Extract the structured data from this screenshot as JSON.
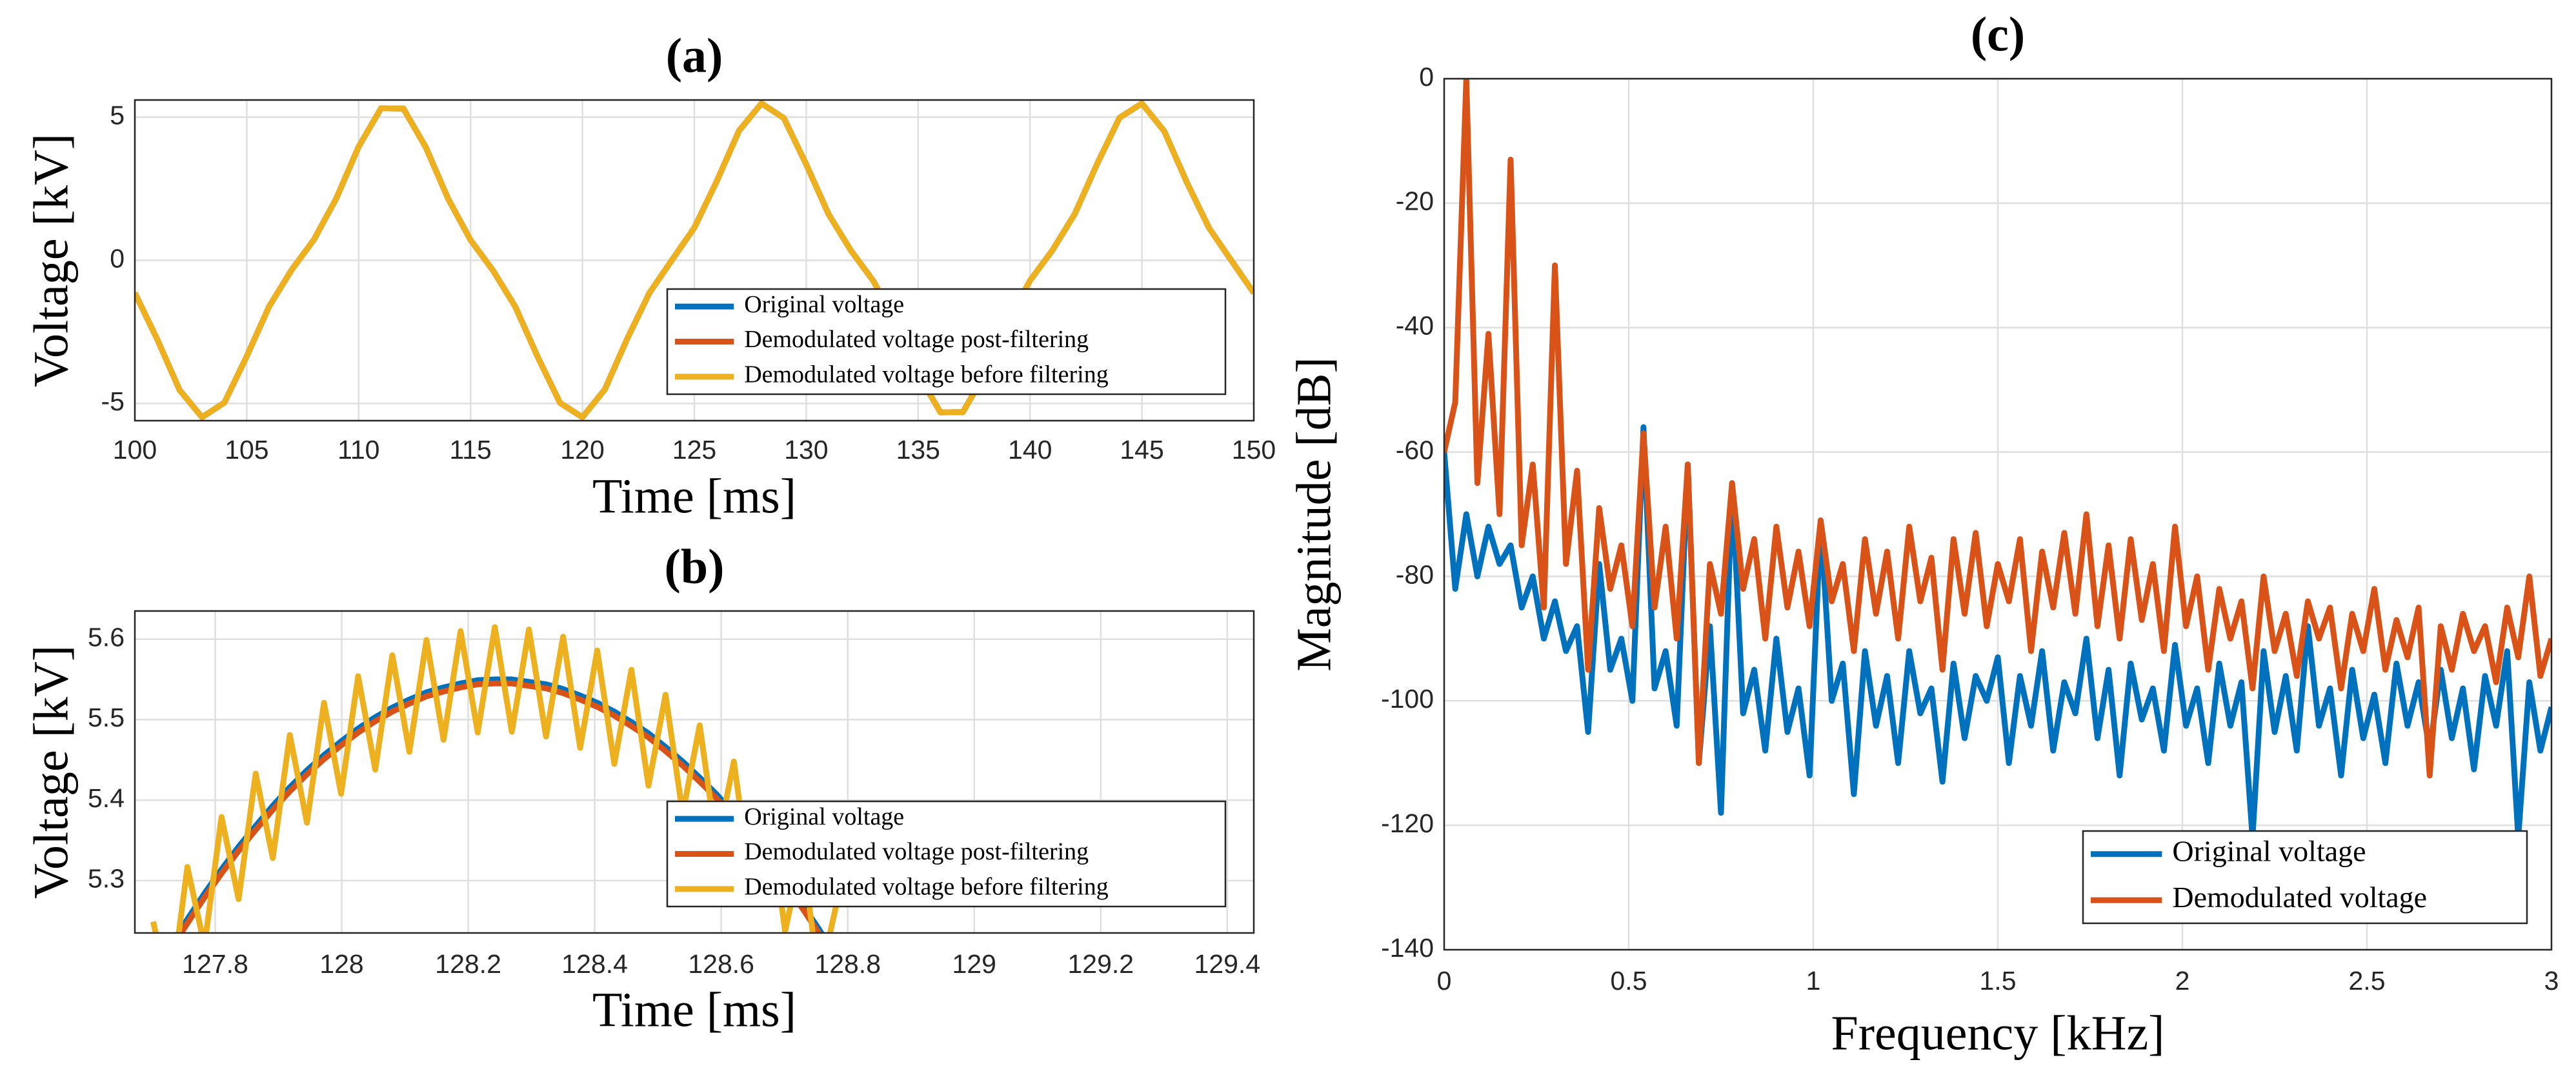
{
  "chart_data": [
    {
      "type": "line",
      "title": "(a)",
      "xlabel": "Time [ms]",
      "ylabel": "Voltage [kV]",
      "x": [
        100,
        101,
        102,
        103,
        104,
        105,
        106,
        107,
        108,
        109,
        110,
        111,
        112,
        113,
        114,
        115,
        116,
        117,
        118,
        119,
        120,
        121,
        122,
        123,
        124,
        125,
        126,
        127,
        128,
        129,
        130,
        131,
        132,
        133,
        134,
        135,
        136,
        137,
        138,
        139,
        140,
        141,
        142,
        143,
        144,
        145,
        146,
        147,
        148,
        149,
        150
      ],
      "series": [
        {
          "name": "Original voltage",
          "color": "#0072BD",
          "values": [
            -1.14,
            -2.76,
            -4.53,
            -5.48,
            -4.97,
            -3.35,
            -1.61,
            -0.34,
            0.72,
            2.16,
            3.97,
            5.31,
            5.3,
            3.95,
            2.15,
            0.71,
            -0.35,
            -1.62,
            -3.37,
            -4.98,
            -5.48,
            -4.51,
            -2.74,
            -1.13,
            0.01,
            1.14,
            2.76,
            4.53,
            5.48,
            4.97,
            3.35,
            1.61,
            0.34,
            -0.72,
            -2.16,
            -3.97,
            -5.31,
            -5.3,
            -3.95,
            -2.15,
            -0.71,
            0.35,
            1.62,
            3.37,
            4.98,
            5.48,
            4.51,
            2.74,
            1.13,
            -0.01,
            -1.14
          ]
        },
        {
          "name": "Demodulated voltage post-filtering",
          "color": "#D95319",
          "values": [
            -1.14,
            -2.76,
            -4.53,
            -5.48,
            -4.97,
            -3.35,
            -1.61,
            -0.34,
            0.72,
            2.16,
            3.97,
            5.31,
            5.3,
            3.95,
            2.15,
            0.71,
            -0.35,
            -1.62,
            -3.37,
            -4.98,
            -5.48,
            -4.51,
            -2.74,
            -1.13,
            0.01,
            1.14,
            2.76,
            4.53,
            5.48,
            4.97,
            3.35,
            1.61,
            0.34,
            -0.72,
            -2.16,
            -3.97,
            -5.31,
            -5.3,
            -3.95,
            -2.15,
            -0.71,
            0.35,
            1.62,
            3.37,
            4.98,
            5.48,
            4.51,
            2.74,
            1.13,
            -0.01,
            -1.14
          ]
        },
        {
          "name": "Demodulated voltage before filtering",
          "color": "#EDB120",
          "values": [
            -1.14,
            -2.76,
            -4.53,
            -5.48,
            -4.97,
            -3.35,
            -1.61,
            -0.34,
            0.72,
            2.16,
            3.97,
            5.31,
            5.3,
            3.95,
            2.15,
            0.71,
            -0.35,
            -1.62,
            -3.37,
            -4.98,
            -5.48,
            -4.51,
            -2.74,
            -1.13,
            0.01,
            1.14,
            2.76,
            4.53,
            5.48,
            4.97,
            3.35,
            1.61,
            0.34,
            -0.72,
            -2.16,
            -3.97,
            -5.31,
            -5.3,
            -3.95,
            -2.15,
            -0.71,
            0.35,
            1.62,
            3.37,
            4.98,
            5.48,
            4.51,
            2.74,
            1.13,
            -0.01,
            -1.14
          ]
        }
      ],
      "xlim": [
        100,
        150
      ],
      "xticks": [
        100,
        105,
        110,
        115,
        120,
        125,
        130,
        135,
        140,
        145,
        150
      ],
      "ylim": [
        -5.6,
        5.6
      ],
      "yticks": [
        -5,
        0,
        5
      ],
      "grid": true,
      "legend": "lower right"
    },
    {
      "type": "line",
      "title": "(b)",
      "xlabel": "Time [ms]",
      "ylabel": "Voltage [kV]",
      "x": [
        127.702,
        127.729,
        127.756,
        127.783,
        127.81,
        127.837,
        127.864,
        127.891,
        127.918,
        127.945,
        127.972,
        127.999,
        128.026,
        128.053,
        128.08,
        128.107,
        128.134,
        128.161,
        128.188,
        128.215,
        128.242,
        128.269,
        128.296,
        128.323,
        128.35,
        128.377,
        128.404,
        128.431,
        128.458,
        128.485,
        128.512,
        128.539,
        128.566,
        128.593,
        128.62,
        128.647,
        128.674,
        128.701,
        128.728,
        128.755,
        128.782
      ],
      "series": [
        {
          "name": "Original voltage",
          "color": "#0072BD",
          "values": [
            5.184,
            5.219,
            5.252,
            5.284,
            5.314,
            5.342,
            5.368,
            5.393,
            5.416,
            5.437,
            5.456,
            5.473,
            5.489,
            5.503,
            5.515,
            5.525,
            5.534,
            5.54,
            5.545,
            5.549,
            5.55,
            5.55,
            5.547,
            5.544,
            5.538,
            5.53,
            5.521,
            5.51,
            5.497,
            5.483,
            5.466,
            5.448,
            5.428,
            5.407,
            5.383,
            5.358,
            5.331,
            5.302,
            5.271,
            5.239,
            5.205
          ]
        },
        {
          "name": "Demodulated voltage post-filtering",
          "color": "#D95319",
          "values": [
            5.179,
            5.214,
            5.247,
            5.279,
            5.309,
            5.337,
            5.363,
            5.388,
            5.411,
            5.432,
            5.451,
            5.468,
            5.484,
            5.498,
            5.51,
            5.52,
            5.529,
            5.535,
            5.54,
            5.544,
            5.545,
            5.545,
            5.542,
            5.539,
            5.533,
            5.525,
            5.516,
            5.505,
            5.492,
            5.478,
            5.461,
            5.443,
            5.423,
            5.402,
            5.378,
            5.353,
            5.326,
            5.297,
            5.266,
            5.234,
            5.2
          ]
        },
        {
          "name": "Demodulated voltage before filtering",
          "color": "#EDB120",
          "values": [
            5.249,
            5.154,
            5.317,
            5.219,
            5.379,
            5.277,
            5.433,
            5.328,
            5.481,
            5.372,
            5.521,
            5.408,
            5.554,
            5.438,
            5.58,
            5.46,
            5.599,
            5.475,
            5.61,
            5.484,
            5.615,
            5.485,
            5.612,
            5.479,
            5.603,
            5.465,
            5.586,
            5.445,
            5.562,
            5.418,
            5.531,
            5.383,
            5.493,
            5.342,
            5.448,
            5.293,
            5.396,
            5.237,
            5.336,
            5.174,
            5.27
          ]
        }
      ],
      "xlim": [
        127.673,
        129.442
      ],
      "xticks": [
        127.8,
        128,
        128.2,
        128.4,
        128.6,
        128.8,
        129,
        129.2,
        129.4
      ],
      "ylim": [
        5.235,
        5.635
      ],
      "yticks": [
        5.3,
        5.4,
        5.5,
        5.6
      ],
      "grid": true,
      "legend": "lower right"
    },
    {
      "type": "line",
      "title": "(c)",
      "xlabel": "Frequency [kHz]",
      "ylabel": "Magnitude [dB]",
      "x": [
        0,
        0.03,
        0.06,
        0.09,
        0.12,
        0.15,
        0.18,
        0.21,
        0.24,
        0.27,
        0.3,
        0.33,
        0.36,
        0.39,
        0.42,
        0.45,
        0.48,
        0.51,
        0.54,
        0.57,
        0.6,
        0.63,
        0.66,
        0.69,
        0.72,
        0.75,
        0.78,
        0.81,
        0.84,
        0.87,
        0.9,
        0.93,
        0.96,
        0.99,
        1.02,
        1.05,
        1.08,
        1.11,
        1.14,
        1.17,
        1.2,
        1.23,
        1.26,
        1.29,
        1.32,
        1.35,
        1.38,
        1.41,
        1.44,
        1.47,
        1.5,
        1.53,
        1.56,
        1.59,
        1.62,
        1.65,
        1.68,
        1.71,
        1.74,
        1.77,
        1.8,
        1.83,
        1.86,
        1.89,
        1.92,
        1.95,
        1.98,
        2.01,
        2.04,
        2.07,
        2.1,
        2.13,
        2.16,
        2.19,
        2.22,
        2.25,
        2.28,
        2.31,
        2.34,
        2.37,
        2.4,
        2.43,
        2.46,
        2.49,
        2.52,
        2.55,
        2.58,
        2.61,
        2.64,
        2.67,
        2.7,
        2.73,
        2.76,
        2.79,
        2.82,
        2.85,
        2.88,
        2.91,
        2.94,
        2.97,
        3
      ],
      "series": [
        {
          "name": "Original voltage",
          "color": "#0072BD",
          "values": [
            -60,
            -82,
            -70,
            -80,
            -72,
            -78,
            -75,
            -85,
            -80,
            -90,
            -84,
            -92,
            -88,
            -105,
            -78,
            -95,
            -90,
            -100,
            -56,
            -98,
            -92,
            -104,
            -62,
            -110,
            -88,
            -118,
            -65,
            -102,
            -95,
            -108,
            -90,
            -105,
            -98,
            -112,
            -71,
            -100,
            -94,
            -115,
            -92,
            -104,
            -96,
            -110,
            -92,
            -102,
            -98,
            -113,
            -94,
            -106,
            -96,
            -100,
            -93,
            -110,
            -96,
            -104,
            -92,
            -108,
            -97,
            -102,
            -90,
            -106,
            -95,
            -112,
            -94,
            -103,
            -98,
            -108,
            -91,
            -104,
            -98,
            -110,
            -94,
            -104,
            -97,
            -122,
            -92,
            -105,
            -96,
            -108,
            -88,
            -104,
            -98,
            -112,
            -95,
            -106,
            -99,
            -110,
            -94,
            -104,
            -97,
            -108,
            -95,
            -106,
            -98,
            -111,
            -96,
            -104,
            -92,
            -122,
            -97,
            -108,
            -101
          ]
        },
        {
          "name": "Demodulated voltage",
          "color": "#D95319",
          "values": [
            -60,
            -52,
            0,
            -65,
            -41,
            -70,
            -13,
            -75,
            -62,
            -85,
            -30,
            -78,
            -63,
            -95,
            -69,
            -82,
            -75,
            -88,
            -57,
            -85,
            -72,
            -90,
            -62,
            -110,
            -78,
            -86,
            -65,
            -82,
            -74,
            -90,
            -72,
            -85,
            -76,
            -88,
            -71,
            -84,
            -78,
            -92,
            -74,
            -86,
            -76,
            -90,
            -72,
            -84,
            -77,
            -95,
            -74,
            -86,
            -73,
            -88,
            -78,
            -84,
            -74,
            -92,
            -76,
            -85,
            -73,
            -86,
            -70,
            -88,
            -75,
            -90,
            -74,
            -87,
            -78,
            -92,
            -72,
            -88,
            -80,
            -95,
            -82,
            -90,
            -84,
            -98,
            -80,
            -92,
            -86,
            -96,
            -84,
            -90,
            -85,
            -98,
            -86,
            -92,
            -82,
            -95,
            -87,
            -93,
            -85,
            -112,
            -88,
            -95,
            -86,
            -92,
            -88,
            -97,
            -85,
            -93,
            -80,
            -96,
            -90
          ]
        }
      ],
      "xlim": [
        0,
        3
      ],
      "xticks": [
        0,
        0.5,
        1,
        1.5,
        2,
        2.5,
        3
      ],
      "ylim": [
        -140,
        0
      ],
      "yticks": [
        -140,
        -120,
        -100,
        -80,
        -60,
        -40,
        -20,
        0
      ],
      "grid": true,
      "legend": "lower right"
    }
  ]
}
